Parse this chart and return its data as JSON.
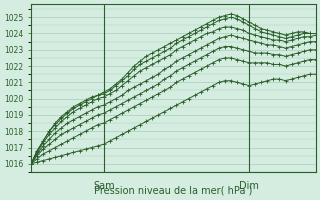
{
  "background_color": "#d4ede0",
  "grid_color": "#a8cdb8",
  "line_color": "#2a5e2a",
  "axis_color": "#2a5e2a",
  "text_color": "#2a5e2a",
  "ylabel_ticks": [
    1016,
    1017,
    1018,
    1019,
    1020,
    1021,
    1022,
    1023,
    1024,
    1025
  ],
  "ylim": [
    1015.5,
    1025.8
  ],
  "xlim": [
    0,
    47
  ],
  "xlabel": "Pression niveau de la mer( hPa )",
  "x_day_labels": [
    [
      "Sam",
      12
    ],
    [
      "Dim",
      36
    ]
  ],
  "series": [
    [
      1016.0,
      1016.8,
      1017.4,
      1018.0,
      1018.5,
      1018.9,
      1019.2,
      1019.5,
      1019.7,
      1019.9,
      1020.1,
      1020.2,
      1020.4,
      1020.6,
      1020.9,
      1021.2,
      1021.6,
      1022.0,
      1022.3,
      1022.6,
      1022.8,
      1023.0,
      1023.2,
      1023.4,
      1023.6,
      1023.8,
      1024.0,
      1024.2,
      1024.4,
      1024.6,
      1024.8,
      1025.0,
      1025.1,
      1025.2,
      1025.1,
      1024.9,
      1024.7,
      1024.5,
      1024.3,
      1024.2,
      1024.1,
      1024.0,
      1023.9,
      1024.0,
      1024.1,
      1024.1,
      1024.0,
      1024.0
    ],
    [
      1016.0,
      1016.8,
      1017.4,
      1018.0,
      1018.4,
      1018.8,
      1019.1,
      1019.4,
      1019.6,
      1019.8,
      1020.0,
      1020.2,
      1020.3,
      1020.5,
      1020.8,
      1021.1,
      1021.4,
      1021.8,
      1022.1,
      1022.3,
      1022.5,
      1022.7,
      1022.9,
      1023.1,
      1023.4,
      1023.6,
      1023.8,
      1024.0,
      1024.2,
      1024.4,
      1024.6,
      1024.8,
      1024.9,
      1025.0,
      1024.9,
      1024.7,
      1024.5,
      1024.3,
      1024.1,
      1024.0,
      1023.9,
      1023.8,
      1023.7,
      1023.8,
      1023.9,
      1024.0,
      1024.0,
      1024.0
    ],
    [
      1016.0,
      1016.7,
      1017.3,
      1017.8,
      1018.2,
      1018.6,
      1018.9,
      1019.2,
      1019.4,
      1019.6,
      1019.8,
      1020.0,
      1020.1,
      1020.3,
      1020.5,
      1020.8,
      1021.1,
      1021.4,
      1021.7,
      1021.9,
      1022.1,
      1022.3,
      1022.5,
      1022.7,
      1023.0,
      1023.2,
      1023.4,
      1023.6,
      1023.8,
      1024.0,
      1024.1,
      1024.3,
      1024.4,
      1024.4,
      1024.3,
      1024.2,
      1024.0,
      1023.9,
      1023.8,
      1023.7,
      1023.6,
      1023.6,
      1023.5,
      1023.6,
      1023.7,
      1023.8,
      1023.8,
      1023.9
    ],
    [
      1016.0,
      1016.6,
      1017.1,
      1017.5,
      1017.9,
      1018.2,
      1018.5,
      1018.7,
      1018.9,
      1019.1,
      1019.3,
      1019.5,
      1019.6,
      1019.8,
      1020.0,
      1020.2,
      1020.5,
      1020.7,
      1020.9,
      1021.1,
      1021.3,
      1021.5,
      1021.8,
      1022.0,
      1022.3,
      1022.5,
      1022.7,
      1022.9,
      1023.1,
      1023.3,
      1023.5,
      1023.7,
      1023.8,
      1023.9,
      1023.8,
      1023.7,
      1023.6,
      1023.5,
      1023.4,
      1023.3,
      1023.3,
      1023.2,
      1023.1,
      1023.2,
      1023.3,
      1023.4,
      1023.5,
      1023.5
    ],
    [
      1016.0,
      1016.5,
      1016.9,
      1017.2,
      1017.5,
      1017.8,
      1018.0,
      1018.2,
      1018.4,
      1018.6,
      1018.8,
      1019.0,
      1019.1,
      1019.3,
      1019.5,
      1019.7,
      1019.9,
      1020.1,
      1020.3,
      1020.5,
      1020.7,
      1020.9,
      1021.2,
      1021.4,
      1021.7,
      1021.9,
      1022.1,
      1022.3,
      1022.5,
      1022.7,
      1022.9,
      1023.1,
      1023.2,
      1023.2,
      1023.1,
      1023.0,
      1022.9,
      1022.8,
      1022.8,
      1022.8,
      1022.7,
      1022.7,
      1022.6,
      1022.7,
      1022.8,
      1022.9,
      1023.0,
      1023.0
    ],
    [
      1016.0,
      1016.3,
      1016.6,
      1016.8,
      1017.0,
      1017.2,
      1017.4,
      1017.6,
      1017.8,
      1018.0,
      1018.2,
      1018.4,
      1018.5,
      1018.7,
      1018.9,
      1019.1,
      1019.3,
      1019.5,
      1019.7,
      1019.9,
      1020.1,
      1020.3,
      1020.5,
      1020.7,
      1021.0,
      1021.2,
      1021.4,
      1021.6,
      1021.8,
      1022.0,
      1022.2,
      1022.4,
      1022.5,
      1022.5,
      1022.4,
      1022.3,
      1022.2,
      1022.2,
      1022.2,
      1022.2,
      1022.1,
      1022.1,
      1022.0,
      1022.1,
      1022.2,
      1022.3,
      1022.4,
      1022.4
    ],
    [
      1016.0,
      1016.1,
      1016.2,
      1016.3,
      1016.4,
      1016.5,
      1016.6,
      1016.7,
      1016.8,
      1016.9,
      1017.0,
      1017.1,
      1017.2,
      1017.4,
      1017.6,
      1017.8,
      1018.0,
      1018.2,
      1018.4,
      1018.6,
      1018.8,
      1019.0,
      1019.2,
      1019.4,
      1019.6,
      1019.8,
      1020.0,
      1020.2,
      1020.4,
      1020.6,
      1020.8,
      1021.0,
      1021.1,
      1021.1,
      1021.0,
      1020.9,
      1020.8,
      1020.9,
      1021.0,
      1021.1,
      1021.2,
      1021.2,
      1021.1,
      1021.2,
      1021.3,
      1021.4,
      1021.5,
      1021.5
    ]
  ]
}
